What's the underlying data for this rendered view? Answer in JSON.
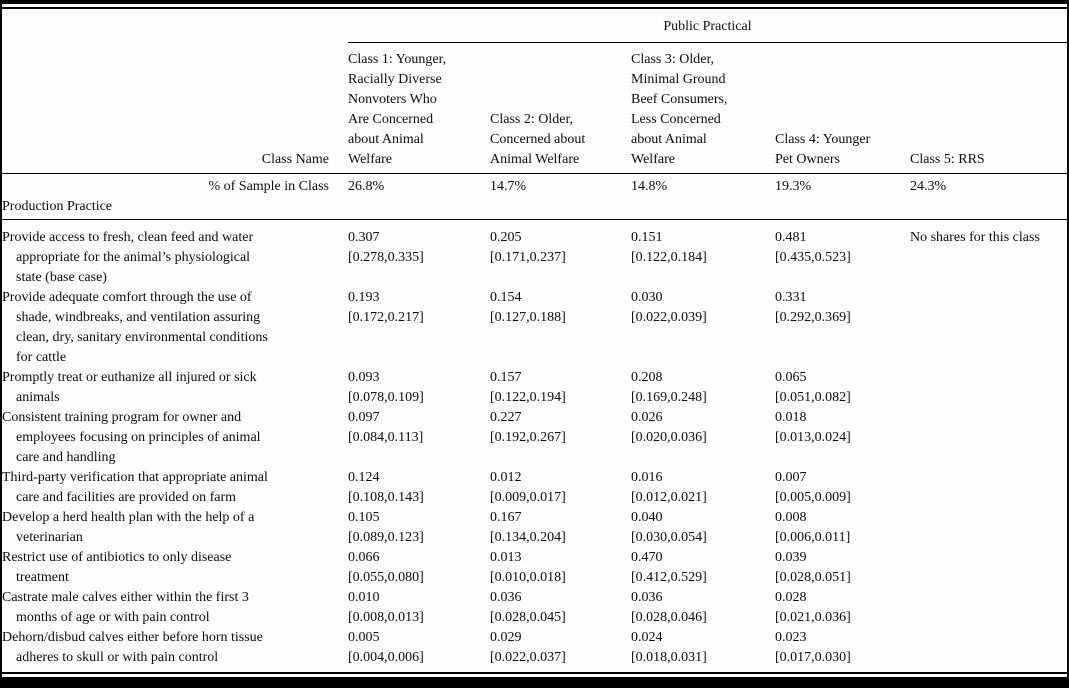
{
  "group_header": "Public Practical",
  "class_name_label": "Class Name",
  "classes": [
    "Class 1: Younger,\nRacially Diverse\nNonvoters Who\nAre Concerned\nabout Animal\nWelfare",
    "Class 2: Older,\nConcerned about\nAnimal Welfare",
    "Class 3: Older,\nMinimal Ground\nBeef Consumers,\nLess Concerned\nabout Animal\nWelfare",
    "Class 4: Younger\nPet Owners",
    "Class 5: RRS"
  ],
  "sample_label": "% of Sample in Class",
  "sample_values": [
    "26.8%",
    "14.7%",
    "14.8%",
    "19.3%",
    "24.3%"
  ],
  "section_label": "Production Practice",
  "rows": [
    {
      "practice": "Provide access to fresh, clean feed and water\nappropriate for the animal’s physiological\nstate (base case)",
      "cells": [
        {
          "share": "0.307",
          "ci": "[0.278,0.335]"
        },
        {
          "share": "0.205",
          "ci": "[0.171,0.237]"
        },
        {
          "share": "0.151",
          "ci": "[0.122,0.184]"
        },
        {
          "share": "0.481",
          "ci": "[0.435,0.523]"
        }
      ],
      "class5": "No shares for this class"
    },
    {
      "practice": "Provide adequate comfort through the use of\nshade, windbreaks, and ventilation assuring\nclean, dry, sanitary environmental conditions\nfor cattle",
      "cells": [
        {
          "share": "0.193",
          "ci": "[0.172,0.217]"
        },
        {
          "share": "0.154",
          "ci": "[0.127,0.188]"
        },
        {
          "share": "0.030",
          "ci": "[0.022,0.039]"
        },
        {
          "share": "0.331",
          "ci": "[0.292,0.369]"
        }
      ],
      "class5": ""
    },
    {
      "practice": "Promptly treat or euthanize all injured or sick\nanimals",
      "cells": [
        {
          "share": "0.093",
          "ci": "[0.078,0.109]"
        },
        {
          "share": "0.157",
          "ci": "[0.122,0.194]"
        },
        {
          "share": "0.208",
          "ci": "[0.169,0.248]"
        },
        {
          "share": "0.065",
          "ci": "[0.051,0.082]"
        }
      ],
      "class5": ""
    },
    {
      "practice": "Consistent training program for owner and\nemployees focusing on principles of animal\ncare and handling",
      "cells": [
        {
          "share": "0.097",
          "ci": "[0.084,0.113]"
        },
        {
          "share": "0.227",
          "ci": "[0.192,0.267]"
        },
        {
          "share": "0.026",
          "ci": "[0.020,0.036]"
        },
        {
          "share": "0.018",
          "ci": "[0.013,0.024]"
        }
      ],
      "class5": ""
    },
    {
      "practice": "Third-party verification that appropriate animal\ncare and facilities are provided on farm",
      "cells": [
        {
          "share": "0.124",
          "ci": "[0.108,0.143]"
        },
        {
          "share": "0.012",
          "ci": "[0.009,0.017]"
        },
        {
          "share": "0.016",
          "ci": "[0.012,0.021]"
        },
        {
          "share": "0.007",
          "ci": "[0.005,0.009]"
        }
      ],
      "class5": ""
    },
    {
      "practice": "Develop a herd health plan with the help of a\nveterinarian",
      "cells": [
        {
          "share": "0.105",
          "ci": "[0.089,0.123]"
        },
        {
          "share": "0.167",
          "ci": "[0.134,0.204]"
        },
        {
          "share": "0.040",
          "ci": "[0.030,0.054]"
        },
        {
          "share": "0.008",
          "ci": "[0.006,0.011]"
        }
      ],
      "class5": ""
    },
    {
      "practice": "Restrict use of antibiotics to only disease\ntreatment",
      "cells": [
        {
          "share": "0.066",
          "ci": "[0.055,0.080]"
        },
        {
          "share": "0.013",
          "ci": "[0.010,0.018]"
        },
        {
          "share": "0.470",
          "ci": "[0.412,0.529]"
        },
        {
          "share": "0.039",
          "ci": "[0.028,0.051]"
        }
      ],
      "class5": ""
    },
    {
      "practice": "Castrate male calves either within the first 3\nmonths of age or with pain control",
      "cells": [
        {
          "share": "0.010",
          "ci": "[0.008,0.013]"
        },
        {
          "share": "0.036",
          "ci": "[0.028,0.045]"
        },
        {
          "share": "0.036",
          "ci": "[0.028,0.046]"
        },
        {
          "share": "0.028",
          "ci": "[0.021,0.036]"
        }
      ],
      "class5": ""
    },
    {
      "practice": "Dehorn/disbud calves either before horn tissue\nadheres to skull or with pain control",
      "cells": [
        {
          "share": "0.005",
          "ci": "[0.004,0.006]"
        },
        {
          "share": "0.029",
          "ci": "[0.022,0.037]"
        },
        {
          "share": "0.024",
          "ci": "[0.018,0.031]"
        },
        {
          "share": "0.023",
          "ci": "[0.017,0.030]"
        }
      ],
      "class5": ""
    }
  ]
}
